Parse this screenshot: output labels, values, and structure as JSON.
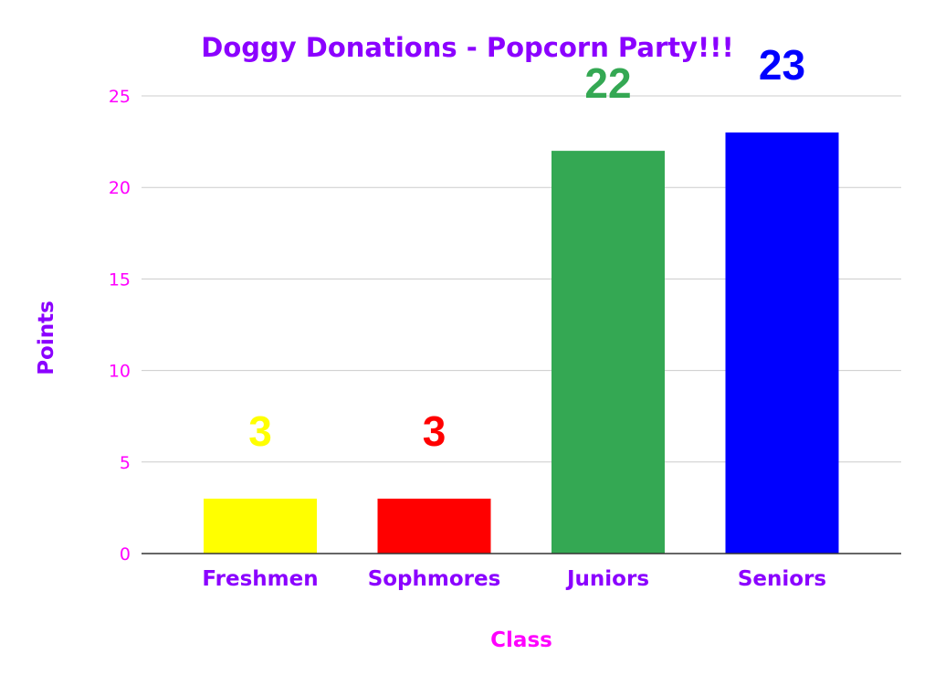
{
  "chart_data": {
    "type": "bar",
    "title": "Doggy Donations - Popcorn Party!!!",
    "xlabel": "Class",
    "ylabel": "Points",
    "categories": [
      "Freshmen",
      "Sophmores",
      "Juniors",
      "Seniors"
    ],
    "values": [
      3,
      3,
      22,
      23
    ],
    "data_labels": [
      "3",
      "3",
      "22",
      "23"
    ],
    "bar_colors": [
      "#ffff00",
      "#ff0000",
      "#34a853",
      "#0000ff"
    ],
    "ylim": [
      0,
      25
    ],
    "yticks": [
      0,
      5,
      10,
      15,
      20,
      25
    ],
    "grid": true,
    "legend": "none"
  },
  "colors": {
    "title": "#8b00ff",
    "category_labels": "#8b00ff",
    "ylabel": "#8b00ff",
    "xlabel": "#ff00ff",
    "tick_labels": "#ff00ff",
    "gridlines": "#cccccc",
    "axis_line": "#333333"
  }
}
